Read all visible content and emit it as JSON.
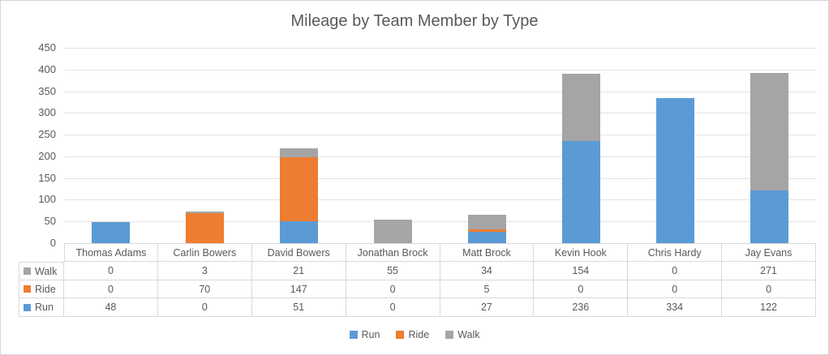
{
  "title": "Mileage by Team Member by Type",
  "colors": {
    "run": "#5B9BD5",
    "ride": "#ED7D31",
    "walk": "#A5A5A5",
    "gridline": "#E3E3E3",
    "table_border": "#D9D9D9",
    "text": "#595959"
  },
  "chart_data": {
    "type": "bar",
    "stacked": true,
    "title": "Mileage by Team Member by Type",
    "categories": [
      "Thomas Adams",
      "Carlin Bowers",
      "David Bowers",
      "Jonathan Brock",
      "Matt Brock",
      "Kevin Hook",
      "Chris Hardy",
      "Jay Evans"
    ],
    "series": [
      {
        "name": "Run",
        "color": "#5B9BD5",
        "values": [
          48,
          0,
          51,
          0,
          27,
          236,
          334,
          122
        ]
      },
      {
        "name": "Ride",
        "color": "#ED7D31",
        "values": [
          0,
          70,
          147,
          0,
          5,
          0,
          0,
          0
        ]
      },
      {
        "name": "Walk",
        "color": "#A5A5A5",
        "values": [
          0,
          3,
          21,
          55,
          34,
          154,
          0,
          271
        ]
      }
    ],
    "xlabel": "",
    "ylabel": "",
    "ylim": [
      0,
      450
    ],
    "yticks": [
      0,
      50,
      100,
      150,
      200,
      250,
      300,
      350,
      400,
      450
    ],
    "grid": true,
    "legend_position": "bottom",
    "legend_order": [
      "Run",
      "Ride",
      "Walk"
    ],
    "data_table_row_order": [
      "Walk",
      "Ride",
      "Run"
    ]
  }
}
